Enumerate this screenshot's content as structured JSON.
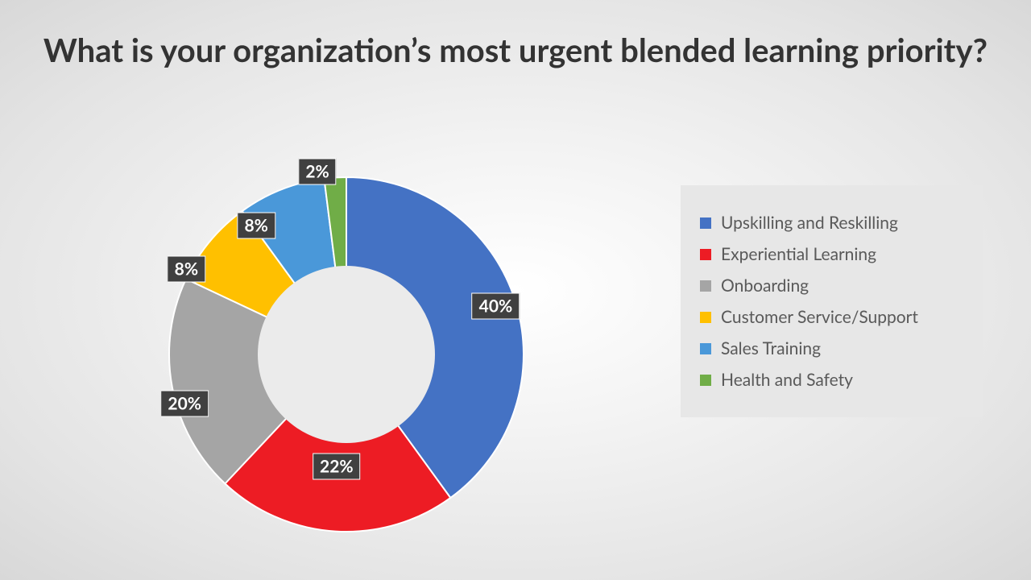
{
  "title": {
    "text": "What is your organization’s most urgent blended learning priority?",
    "fontsize": 40,
    "color": "#333333"
  },
  "chart": {
    "type": "donut",
    "outer_radius": 220,
    "inner_radius": 110,
    "center_fill": "#ebebeb",
    "start_angle_deg": 0,
    "slice_border": {
      "color": "#ffffff",
      "width": 2
    },
    "slices": [
      {
        "label": "Upskilling and Reskilling",
        "display": "40%",
        "value": 40,
        "color": "#4472c4"
      },
      {
        "label": "Experiential Learning",
        "display": "22%",
        "value": 22,
        "color": "#ed1c24"
      },
      {
        "label": "Onboarding",
        "display": "20%",
        "value": 20,
        "color": "#a5a5a5"
      },
      {
        "label": "Customer Service/Support",
        "display": "8%",
        "value": 8,
        "color": "#ffc000"
      },
      {
        "label": "Sales Training",
        "display": "8%",
        "value": 8,
        "color": "#4a98d9"
      },
      {
        "label": "Health and Safety",
        "display": "2%",
        "value": 2,
        "color": "#70ad47"
      }
    ],
    "data_label": {
      "bg": "#404040",
      "border": "#ffffff",
      "color": "#ffffff",
      "fontsize": 21,
      "radius": 195,
      "positions": [
        {
          "angle_deg": 72
        },
        {
          "angle_deg": 185,
          "radius": 140
        },
        {
          "angle_deg": 253,
          "radius": 210
        },
        {
          "angle_deg": 298,
          "radius": 225
        },
        {
          "angle_deg": 325,
          "radius": 195
        },
        {
          "angle_deg": 351,
          "radius": 230
        }
      ]
    }
  },
  "legend": {
    "bg": "#e7e7e7",
    "fontsize": 21,
    "label_color": "#595959",
    "swatch_size": 14
  }
}
